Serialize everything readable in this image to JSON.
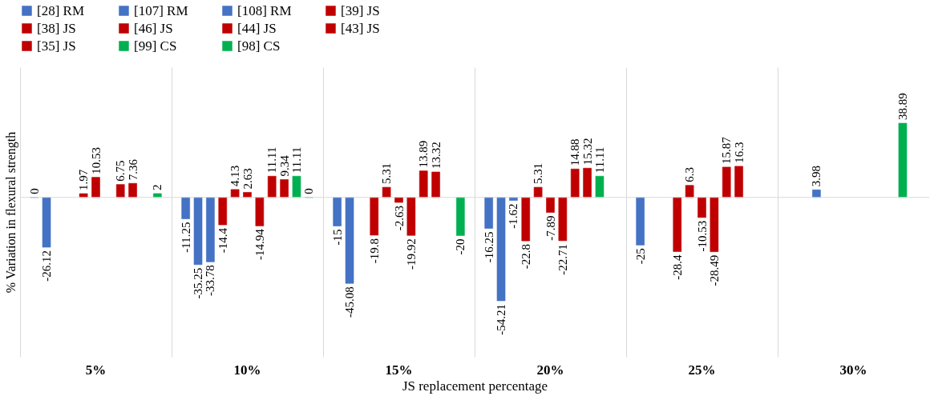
{
  "chart_data": {
    "type": "bar",
    "xlabel": "JS replacement percentage",
    "ylabel": "% Variation in flexural strength",
    "categories": [
      "5%",
      "10%",
      "15%",
      "20%",
      "25%",
      "30%"
    ],
    "series": [
      {
        "name": "[28] RM",
        "color": "#4472c4",
        "values": [
          0,
          -11.25,
          -15,
          -16.25,
          -25,
          null
        ]
      },
      {
        "name": "[107] RM",
        "color": "#4472c4",
        "values": [
          -26.12,
          -35.25,
          -45.08,
          -54.21,
          null,
          null
        ]
      },
      {
        "name": "[108] RM",
        "color": "#4472c4",
        "values": [
          null,
          -33.78,
          null,
          -1.62,
          null,
          3.98
        ]
      },
      {
        "name": "[39] JS",
        "color": "#c00000",
        "values": [
          null,
          -14.4,
          -19.8,
          -22.8,
          -28.4,
          null
        ]
      },
      {
        "name": "[38] JS",
        "color": "#c00000",
        "values": [
          1.97,
          4.13,
          5.31,
          5.31,
          6.3,
          null
        ]
      },
      {
        "name": "[46] JS",
        "color": "#c00000",
        "values": [
          10.53,
          2.63,
          -2.63,
          -7.89,
          -10.53,
          null
        ]
      },
      {
        "name": "[44] JS",
        "color": "#c00000",
        "values": [
          null,
          -14.94,
          -19.92,
          -22.71,
          -28.49,
          null
        ]
      },
      {
        "name": "[43] JS",
        "color": "#c00000",
        "values": [
          6.75,
          11.11,
          13.89,
          14.88,
          15.87,
          null
        ]
      },
      {
        "name": "[35] JS",
        "color": "#c00000",
        "values": [
          7.36,
          9.34,
          13.32,
          15.32,
          16.3,
          null
        ]
      },
      {
        "name": "[99] CS",
        "color": "#00b050",
        "values": [
          null,
          11.11,
          null,
          11.11,
          null,
          38.89
        ]
      },
      {
        "name": "[98] CS",
        "color": "#00b050",
        "values": [
          2,
          0,
          -20,
          null,
          null,
          null
        ]
      }
    ],
    "data_labels": true,
    "grid": "x",
    "legend": "top"
  }
}
